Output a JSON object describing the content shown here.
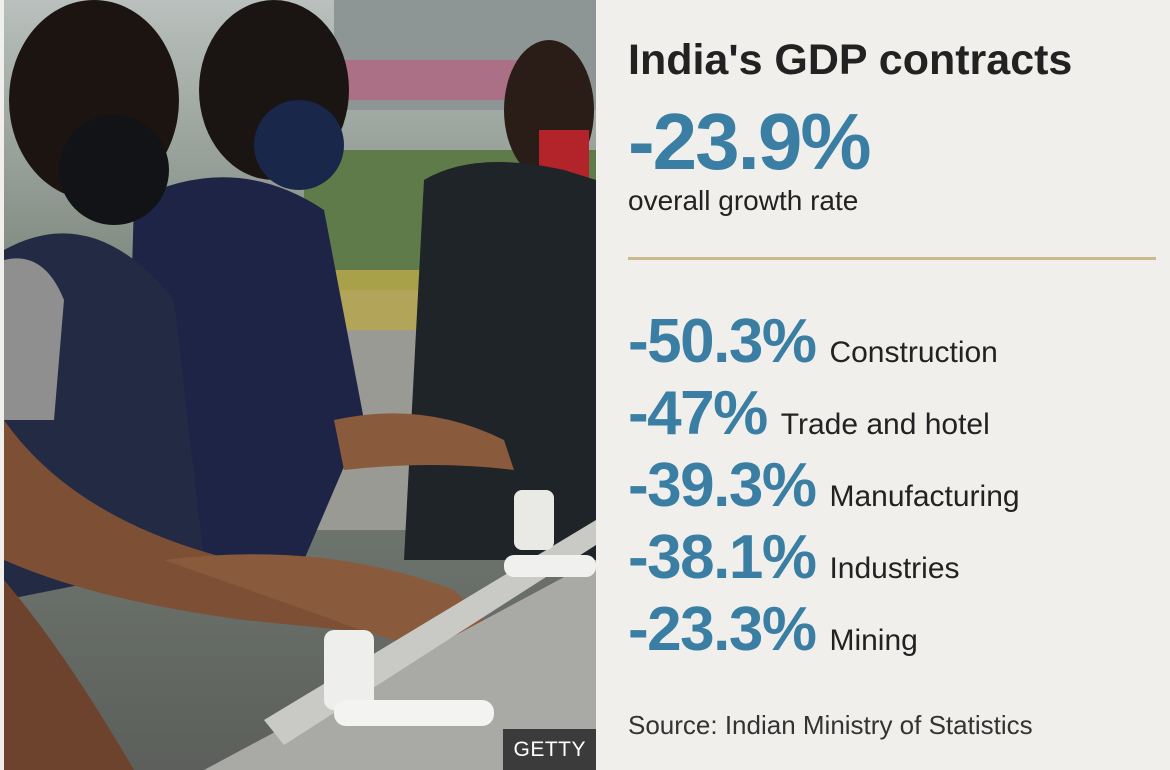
{
  "title": "India's GDP contracts",
  "headline": {
    "value": "-23.9%",
    "caption": "overall growth rate"
  },
  "sectors": [
    {
      "pct": "-50.3%",
      "label": "Construction"
    },
    {
      "pct": "-47%",
      "label": "Trade and hotel"
    },
    {
      "pct": "-39.3%",
      "label": "Manufacturing"
    },
    {
      "pct": "-38.1%",
      "label": "Industries"
    },
    {
      "pct": "-23.3%",
      "label": "Mining"
    }
  ],
  "source": "Source: Indian Ministry of Statistics",
  "photo": {
    "credit": "GETTY"
  },
  "colors": {
    "accent": "#3a7fa3",
    "rule": "#cdb98f",
    "background": "#f1efec",
    "text": "#222222"
  }
}
